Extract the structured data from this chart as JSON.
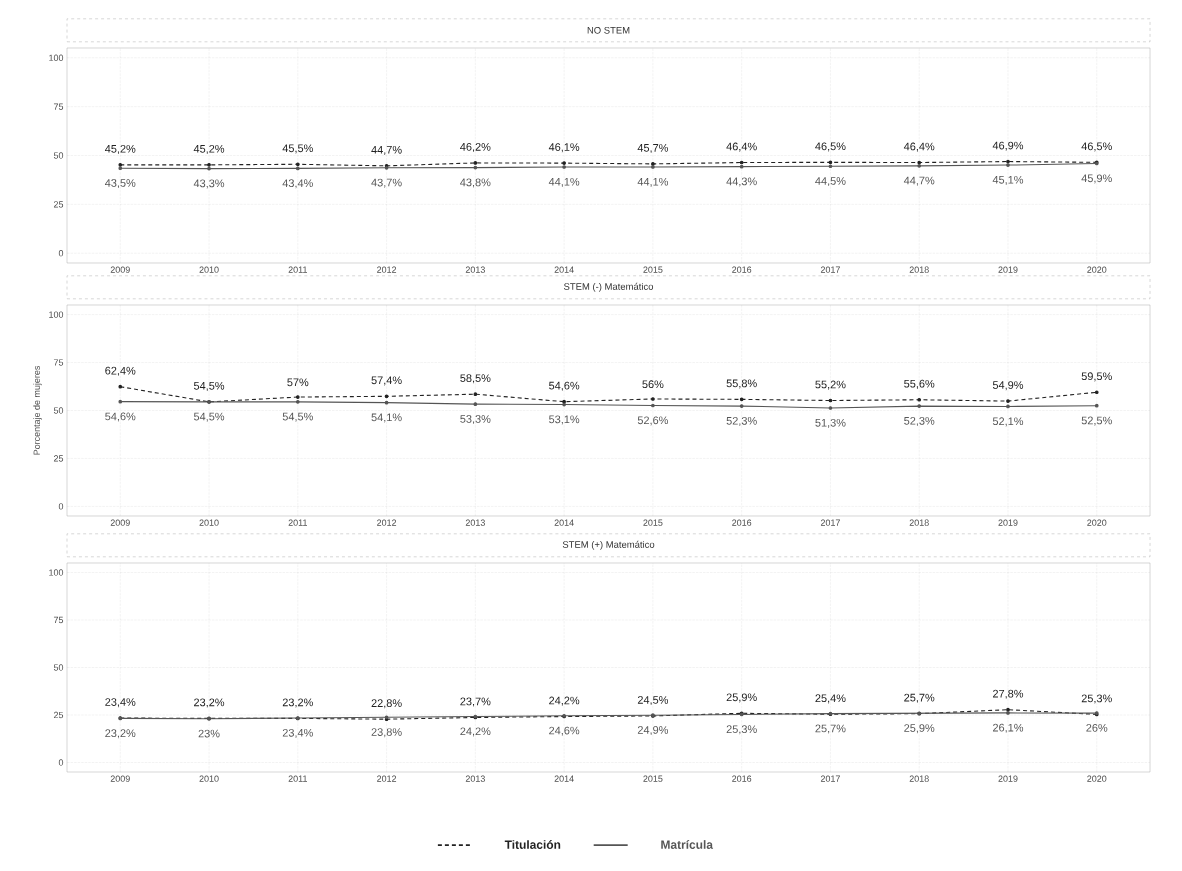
{
  "chart_data": [
    {
      "type": "line",
      "title": "NO STEM",
      "categories": [
        "2009",
        "2010",
        "2011",
        "2012",
        "2013",
        "2014",
        "2015",
        "2016",
        "2017",
        "2018",
        "2019",
        "2020"
      ],
      "ylim": [
        -5,
        105
      ],
      "yticks": [
        0,
        25,
        50,
        75,
        100
      ],
      "grid": true,
      "marker": "circle",
      "series": [
        {
          "color": "#222222",
          "line_style": "dashed",
          "values": [
            45.2,
            45.2,
            45.5,
            44.7,
            46.2,
            46.1,
            45.7,
            46.4,
            46.5,
            46.4,
            46.9,
            46.5
          ],
          "value_labels": [
            "45,2%",
            "45,2%",
            "45,5%",
            "44,7%",
            "46,2%",
            "46,1%",
            "45,7%",
            "46,4%",
            "46,5%",
            "46,4%",
            "46,9%",
            "46,5%"
          ]
        },
        {
          "color": "#555555",
          "line_style": "solid",
          "values": [
            43.5,
            43.3,
            43.4,
            43.7,
            43.8,
            44.1,
            44.1,
            44.3,
            44.5,
            44.7,
            45.1,
            45.9
          ],
          "value_labels": [
            "43,5%",
            "43,3%",
            "43,4%",
            "43,7%",
            "43,8%",
            "44,1%",
            "44,1%",
            "44,3%",
            "44,5%",
            "44,7%",
            "45,1%",
            "45,9%"
          ]
        }
      ]
    },
    {
      "type": "line",
      "title": "STEM (-) Matemático",
      "ylabel": "Porcentaje de mujeres",
      "categories": [
        "2009",
        "2010",
        "2011",
        "2012",
        "2013",
        "2014",
        "2015",
        "2016",
        "2017",
        "2018",
        "2019",
        "2020"
      ],
      "ylim": [
        -5,
        105
      ],
      "yticks": [
        0,
        25,
        50,
        75,
        100
      ],
      "grid": true,
      "marker": "circle",
      "series": [
        {
          "color": "#222222",
          "line_style": "dashed",
          "values": [
            62.4,
            54.5,
            57,
            57.4,
            58.5,
            54.6,
            56,
            55.8,
            55.2,
            55.6,
            54.9,
            59.5
          ],
          "value_labels": [
            "62,4%",
            "54,5%",
            "57%",
            "57,4%",
            "58,5%",
            "54,6%",
            "56%",
            "55,8%",
            "55,2%",
            "55,6%",
            "54,9%",
            "59,5%"
          ]
        },
        {
          "color": "#555555",
          "line_style": "solid",
          "values": [
            54.6,
            54.5,
            54.5,
            54.1,
            53.3,
            53.1,
            52.6,
            52.3,
            51.3,
            52.3,
            52.1,
            52.5
          ],
          "value_labels": [
            "54,6%",
            "54,5%",
            "54,5%",
            "54,1%",
            "53,3%",
            "53,1%",
            "52,6%",
            "52,3%",
            "51,3%",
            "52,3%",
            "52,1%",
            "52,5%"
          ]
        }
      ]
    },
    {
      "type": "line",
      "title": "STEM (+) Matemático",
      "categories": [
        "2009",
        "2010",
        "2011",
        "2012",
        "2013",
        "2014",
        "2015",
        "2016",
        "2017",
        "2018",
        "2019",
        "2020"
      ],
      "ylim": [
        -5,
        105
      ],
      "yticks": [
        0,
        25,
        50,
        75,
        100
      ],
      "grid": true,
      "marker": "circle",
      "legend": "bottom",
      "series": [
        {
          "name": "Titulación",
          "color": "#222222",
          "line_style": "dashed",
          "values": [
            23.4,
            23.2,
            23.2,
            22.8,
            23.7,
            24.2,
            24.5,
            25.9,
            25.4,
            25.7,
            27.8,
            25.3
          ],
          "value_labels": [
            "23,4%",
            "23,2%",
            "23,2%",
            "22,8%",
            "23,7%",
            "24,2%",
            "24,5%",
            "25,9%",
            "25,4%",
            "25,7%",
            "27,8%",
            "25,3%"
          ]
        },
        {
          "name": "Matrícula",
          "color": "#555555",
          "line_style": "solid",
          "values": [
            23.2,
            23,
            23.4,
            23.8,
            24.2,
            24.6,
            24.9,
            25.3,
            25.7,
            25.9,
            26.1,
            26
          ],
          "value_labels": [
            "23,2%",
            "23%",
            "23,4%",
            "23,8%",
            "24,2%",
            "24,6%",
            "24,9%",
            "25,3%",
            "25,7%",
            "25,9%",
            "26,1%",
            "26%"
          ]
        }
      ]
    }
  ]
}
